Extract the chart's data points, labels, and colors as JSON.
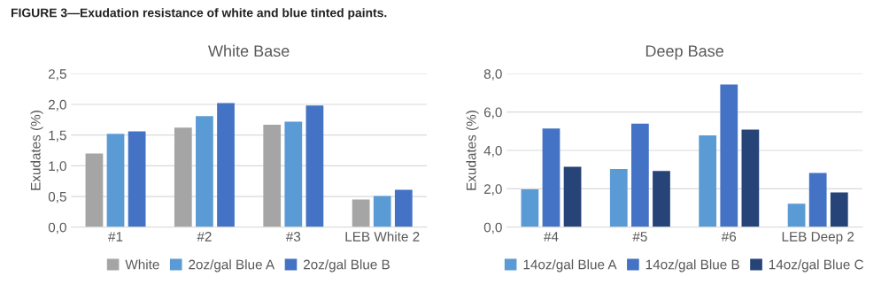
{
  "chart_data": [
    {
      "type": "bar",
      "title": "White Base",
      "ylabel": "Exudates (%)",
      "annotations": [
        "FIGURE 3—Exudation resistance of white and blue tinted paints."
      ],
      "categories": [
        "#1",
        "#2",
        "#3",
        "LEB White 2"
      ],
      "series": [
        {
          "name": "White",
          "color": "#a5a5a5",
          "values": [
            1.2,
            1.62,
            1.67,
            0.45
          ]
        },
        {
          "name": "2oz/gal Blue A",
          "color": "#5b9bd5",
          "values": [
            1.52,
            1.81,
            1.72,
            0.51
          ]
        },
        {
          "name": "2oz/gal Blue B",
          "color": "#4472c4",
          "values": [
            1.56,
            2.02,
            1.98,
            0.61
          ]
        }
      ],
      "ylim": [
        0,
        2.5
      ],
      "yticks": [
        {
          "value": 0,
          "label": "0,0"
        },
        {
          "value": 0.5,
          "label": "0,5"
        },
        {
          "value": 1,
          "label": "1,0"
        },
        {
          "value": 1.5,
          "label": "1,5"
        },
        {
          "value": 2,
          "label": "2,0"
        },
        {
          "value": 2.5,
          "label": "2,5"
        }
      ],
      "grid": "y",
      "legend": "bottom"
    },
    {
      "type": "bar",
      "title": "Deep Base",
      "ylabel": "Exudates (%)",
      "categories": [
        "#4",
        "#5",
        "#6",
        "LEB Deep 2"
      ],
      "series": [
        {
          "name": "14oz/gal Blue A",
          "color": "#5b9bd5",
          "values": [
            1.97,
            3.03,
            4.78,
            1.22
          ]
        },
        {
          "name": "14oz/gal Blue B",
          "color": "#4472c4",
          "values": [
            5.14,
            5.4,
            7.44,
            2.82
          ]
        },
        {
          "name": "14oz/gal Blue C",
          "color": "#264478",
          "values": [
            3.15,
            2.93,
            5.09,
            1.81
          ]
        }
      ],
      "ylim": [
        0,
        8
      ],
      "yticks": [
        {
          "value": 0,
          "label": "0,0"
        },
        {
          "value": 2,
          "label": "2,0"
        },
        {
          "value": 4,
          "label": "4,0"
        },
        {
          "value": 6,
          "label": "6,0"
        },
        {
          "value": 8,
          "label": "8,0"
        }
      ],
      "grid": "y",
      "legend": "bottom"
    }
  ]
}
